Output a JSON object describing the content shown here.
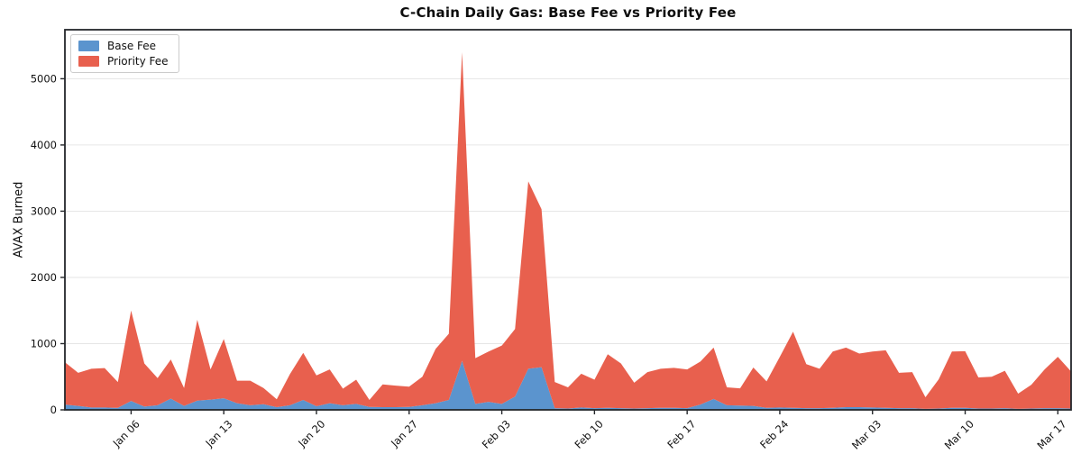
{
  "title": "C-Chain Daily Gas: Base Fee vs Priority Fee",
  "ylabel": "AVAX Burned",
  "legend": {
    "items": [
      {
        "label": "Base Fee",
        "color": "#5b94ce"
      },
      {
        "label": "Priority Fee",
        "color": "#e8604e"
      }
    ]
  },
  "chart_data": {
    "type": "area",
    "stacked": true,
    "title": "C-Chain Daily Gas: Base Fee vs Priority Fee",
    "xlabel": "",
    "ylabel": "AVAX Burned",
    "grid": "horizontal",
    "legend_position": "upper-left",
    "ylim": [
      0,
      5740
    ],
    "yticks": [
      0,
      1000,
      2000,
      3000,
      4000,
      5000
    ],
    "x": [
      "Jan 01",
      "Jan 02",
      "Jan 03",
      "Jan 04",
      "Jan 05",
      "Jan 06",
      "Jan 07",
      "Jan 08",
      "Jan 09",
      "Jan 10",
      "Jan 11",
      "Jan 12",
      "Jan 13",
      "Jan 14",
      "Jan 15",
      "Jan 16",
      "Jan 17",
      "Jan 18",
      "Jan 19",
      "Jan 20",
      "Jan 21",
      "Jan 22",
      "Jan 23",
      "Jan 24",
      "Jan 25",
      "Jan 26",
      "Jan 27",
      "Jan 28",
      "Jan 29",
      "Jan 30",
      "Jan 31",
      "Feb 01",
      "Feb 02",
      "Feb 03",
      "Feb 04",
      "Feb 05",
      "Feb 06",
      "Feb 07",
      "Feb 08",
      "Feb 09",
      "Feb 10",
      "Feb 11",
      "Feb 12",
      "Feb 13",
      "Feb 14",
      "Feb 15",
      "Feb 16",
      "Feb 17",
      "Feb 18",
      "Feb 19",
      "Feb 20",
      "Feb 21",
      "Feb 22",
      "Feb 23",
      "Feb 24",
      "Feb 25",
      "Feb 26",
      "Feb 27",
      "Feb 28",
      "Mar 01",
      "Mar 02",
      "Mar 03",
      "Mar 04",
      "Mar 05",
      "Mar 06",
      "Mar 07",
      "Mar 08",
      "Mar 09",
      "Mar 10",
      "Mar 11",
      "Mar 12",
      "Mar 13",
      "Mar 14",
      "Mar 15",
      "Mar 16",
      "Mar 17",
      "Mar 18"
    ],
    "xticks": {
      "indices": [
        5,
        12,
        19,
        26,
        33,
        40,
        47,
        54,
        61,
        68,
        75
      ],
      "labels": [
        "Jan 06",
        "Jan 13",
        "Jan 20",
        "Jan 27",
        "Feb 03",
        "Feb 10",
        "Feb 17",
        "Feb 24",
        "Mar 03",
        "Mar 10",
        "Mar 17"
      ]
    },
    "series": [
      {
        "name": "Base Fee",
        "color": "#5b94ce",
        "values": [
          80,
          60,
          35,
          35,
          30,
          135,
          50,
          70,
          170,
          60,
          140,
          155,
          175,
          100,
          70,
          85,
          40,
          70,
          150,
          55,
          100,
          70,
          90,
          45,
          40,
          40,
          45,
          70,
          100,
          150,
          740,
          90,
          120,
          90,
          200,
          620,
          645,
          25,
          20,
          35,
          25,
          30,
          25,
          20,
          25,
          30,
          30,
          25,
          80,
          165,
          70,
          65,
          60,
          30,
          35,
          30,
          25,
          25,
          30,
          40,
          40,
          35,
          30,
          25,
          25,
          15,
          20,
          30,
          30,
          20,
          20,
          25,
          15,
          20,
          25,
          25,
          20
        ]
      },
      {
        "name": "Priority Fee",
        "color": "#e8604e",
        "values": [
          640,
          500,
          585,
          595,
          390,
          1365,
          650,
          410,
          590,
          270,
          1220,
          455,
          895,
          340,
          370,
          245,
          120,
          470,
          710,
          465,
          510,
          250,
          365,
          105,
          345,
          325,
          305,
          430,
          820,
          1000,
          4660,
          690,
          760,
          880,
          1020,
          2830,
          2385,
          395,
          320,
          510,
          430,
          810,
          675,
          390,
          545,
          590,
          605,
          585,
          650,
          775,
          270,
          260,
          580,
          400,
          765,
          1150,
          665,
          595,
          850,
          900,
          810,
          845,
          870,
          535,
          545,
          175,
          440,
          850,
          855,
          470,
          480,
          565,
          230,
          360,
          585,
          775,
          560
        ]
      }
    ]
  },
  "style_colors": {
    "grid": "#e6e6e6",
    "spine": "#24272b",
    "tick_label": "#111111"
  }
}
